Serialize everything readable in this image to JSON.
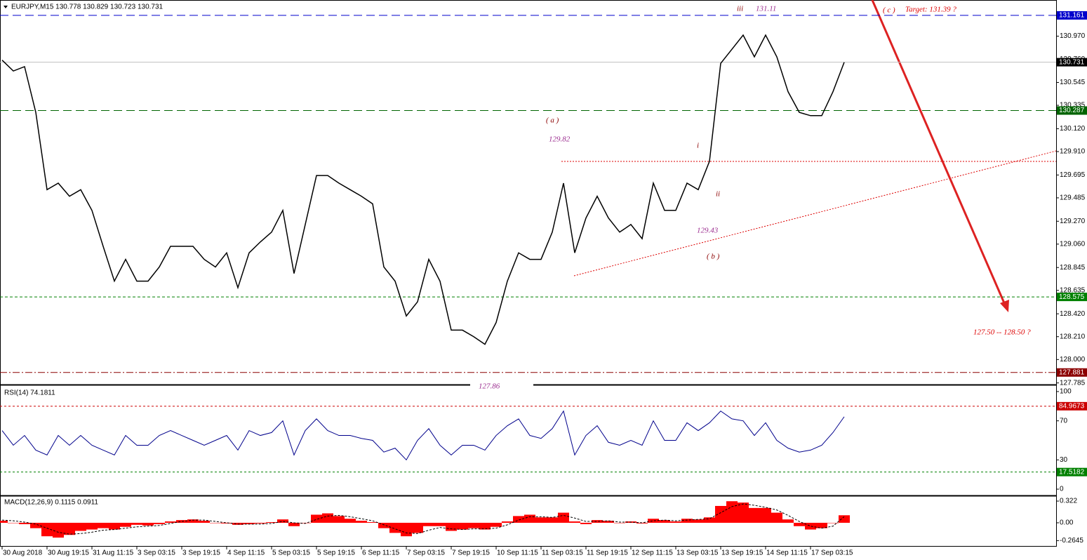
{
  "chart_data": [
    {
      "type": "line",
      "title": "EURJPY,M15  130.778 130.829 130.723 130.731",
      "categories": [
        "30 Aug 2018",
        null,
        null,
        null,
        "30 Aug 19:15",
        null,
        null,
        null,
        "31 Aug 11:15",
        null,
        null,
        null,
        "3 Sep 03:15",
        null,
        null,
        null,
        "3 Sep 19:15",
        null,
        null,
        null,
        "4 Sep 11:15",
        null,
        null,
        null,
        "5 Sep 03:15",
        null,
        null,
        null,
        "5 Sep 19:15",
        null,
        null,
        null,
        "6 Sep 11:15",
        null,
        null,
        null,
        "7 Sep 03:15",
        null,
        null,
        null,
        "7 Sep 19:15",
        null,
        null,
        null,
        "10 Sep 11:15",
        null,
        null,
        null,
        "11 Sep 03:15",
        null,
        null,
        null,
        "11 Sep 19:15",
        null,
        null,
        null,
        "12 Sep 11:15",
        null,
        null,
        null,
        "13 Sep 03:15",
        null,
        null,
        null,
        "13 Sep 19:15",
        null,
        null,
        null,
        "14 Sep 11:15",
        null,
        null,
        null,
        "17 Sep 03:15",
        null,
        null,
        null
      ],
      "values": [
        130.75,
        130.65,
        130.69,
        130.27,
        129.56,
        129.62,
        129.5,
        129.56,
        129.37,
        129.04,
        128.72,
        128.92,
        128.72,
        128.72,
        128.85,
        129.04,
        129.04,
        129.04,
        128.92,
        128.85,
        128.98,
        128.66,
        128.98,
        129.08,
        129.17,
        129.37,
        128.79,
        129.24,
        129.69,
        129.69,
        129.62,
        129.56,
        129.5,
        129.43,
        128.85,
        128.72,
        128.4,
        128.53,
        128.92,
        128.72,
        128.27,
        128.27,
        128.21,
        128.14,
        128.34,
        128.72,
        128.98,
        128.92,
        128.92,
        129.17,
        129.62,
        128.98,
        129.3,
        129.5,
        129.3,
        129.17,
        129.24,
        129.11,
        129.62,
        129.37,
        129.37,
        129.62,
        129.56,
        129.82,
        130.72,
        130.85,
        130.98,
        130.78,
        130.98,
        130.78,
        130.46,
        130.27,
        130.24,
        130.24,
        130.46,
        130.73
      ],
      "color": "#000000",
      "ylim": [
        127.77,
        131.27
      ],
      "yticks": [
        {
          "value": 130.97,
          "label": "130.970"
        },
        {
          "value": 130.76,
          "label": "130.760"
        },
        130.545,
        130.335,
        {
          "value": 130.12,
          "label": "130.120"
        },
        {
          "value": 129.91,
          "label": "129.910"
        },
        129.695,
        129.485,
        {
          "value": 129.27,
          "label": "129.270"
        },
        {
          "value": 129.06,
          "label": "129.060"
        },
        128.845,
        128.635,
        {
          "value": 128.42,
          "label": "128.420"
        },
        {
          "value": 128.21,
          "label": "128.210"
        },
        {
          "value": 128,
          "label": "128.000"
        },
        127.785
      ],
      "levels": [
        {
          "value": 131.161,
          "color": "#0000cc"
        },
        {
          "value": 130.731,
          "color": "#000000"
        },
        {
          "value": 130.287,
          "color": "#006400"
        },
        {
          "value": 128.575,
          "color": "#008000"
        },
        {
          "value": 127.881,
          "color": "#8b0000"
        }
      ],
      "annotations": [
        {
          "text": "iii",
          "color": "#8b0000"
        },
        {
          "text": "131.11",
          "color": "#9b2d8f"
        },
        {
          "text": "( c )",
          "color": "#cc0000"
        },
        {
          "text": "Target:  131.39 ?",
          "color": "#dd0000"
        },
        {
          "text": "( a )",
          "color": "#8b0000"
        },
        {
          "text": "129.82",
          "color": "#9b2d8f"
        },
        {
          "text": "i",
          "color": "#8b0000"
        },
        {
          "text": "ii",
          "color": "#8b0000"
        },
        {
          "text": "129.43",
          "color": "#9b2d8f"
        },
        {
          "text": "( b )",
          "color": "#8b0000"
        },
        {
          "text": "127.50 -- 128.50  ?",
          "color": "#dd0000"
        },
        {
          "text": "127.86",
          "color": "#9b2d8f"
        }
      ]
    },
    {
      "type": "line",
      "title": "RSI(14) 74.1811",
      "values": [
        60,
        45,
        55,
        40,
        35,
        55,
        45,
        55,
        45,
        40,
        35,
        55,
        45,
        45,
        55,
        60,
        55,
        50,
        45,
        50,
        55,
        40,
        60,
        55,
        58,
        70,
        35,
        60,
        72,
        60,
        55,
        55,
        52,
        50,
        38,
        42,
        30,
        50,
        62,
        45,
        35,
        45,
        45,
        40,
        55,
        65,
        72,
        55,
        52,
        62,
        80,
        35,
        55,
        65,
        48,
        45,
        50,
        45,
        70,
        50,
        50,
        68,
        60,
        68,
        80,
        72,
        70,
        55,
        68,
        50,
        42,
        38,
        40,
        45,
        58,
        74.1811
      ],
      "color": "#00008b",
      "ylim": [
        -5,
        105
      ],
      "yticks": [
        100,
        70,
        30,
        0
      ],
      "levels": [
        {
          "value": 84.9673,
          "color": "#cc0000"
        },
        {
          "value": 17.5182,
          "color": "#008000"
        }
      ]
    },
    {
      "type": "bar",
      "title": "MACD(12,26,9) 0.1115 0.0911",
      "series": [
        {
          "color": "#ff0000",
          "values": [
            0.03,
            0.0,
            -0.02,
            -0.08,
            -0.2,
            -0.22,
            -0.18,
            -0.12,
            -0.1,
            -0.08,
            -0.1,
            -0.06,
            -0.03,
            -0.04,
            -0.02,
            0.02,
            0.04,
            0.05,
            0.03,
            0.0,
            -0.01,
            -0.03,
            -0.02,
            -0.01,
            0.01,
            0.05,
            -0.05,
            0.0,
            0.12,
            0.14,
            0.1,
            0.06,
            0.03,
            0.01,
            -0.08,
            -0.15,
            -0.2,
            -0.15,
            -0.05,
            -0.05,
            -0.12,
            -0.1,
            -0.08,
            -0.1,
            -0.06,
            0.02,
            0.1,
            0.12,
            0.08,
            0.08,
            0.15,
            0.02,
            -0.02,
            0.04,
            0.03,
            0.0,
            0.02,
            -0.01,
            0.06,
            0.04,
            0.02,
            0.06,
            0.05,
            0.08,
            0.25,
            0.32,
            0.3,
            0.22,
            0.22,
            0.15,
            0.05,
            -0.05,
            -0.1,
            -0.08,
            0.0,
            0.1115
          ]
        },
        {
          "color": "#000000",
          "values": [
            0.04,
            0.03,
            0.01,
            -0.02,
            -0.08,
            -0.14,
            -0.17,
            -0.16,
            -0.14,
            -0.11,
            -0.1,
            -0.08,
            -0.06,
            -0.05,
            -0.04,
            -0.01,
            0.02,
            0.04,
            0.04,
            0.02,
            0.0,
            -0.02,
            -0.02,
            -0.02,
            -0.01,
            0.02,
            0.0,
            -0.01,
            0.05,
            0.1,
            0.11,
            0.09,
            0.06,
            0.03,
            -0.03,
            -0.09,
            -0.15,
            -0.16,
            -0.11,
            -0.07,
            -0.09,
            -0.1,
            -0.09,
            -0.09,
            -0.08,
            -0.03,
            0.04,
            0.09,
            0.09,
            0.08,
            0.11,
            0.07,
            0.02,
            0.02,
            0.03,
            0.01,
            0.01,
            0.0,
            0.03,
            0.04,
            0.03,
            0.04,
            0.05,
            0.06,
            0.15,
            0.24,
            0.28,
            0.26,
            0.23,
            0.19,
            0.11,
            0.02,
            -0.05,
            -0.08,
            -0.05,
            0.0911
          ]
        }
      ],
      "ylim": [
        -0.344,
        0.385
      ],
      "yticks": [
        0.322,
        {
          "value": 0,
          "label": "0.00"
        },
        -0.2645
      ]
    }
  ]
}
